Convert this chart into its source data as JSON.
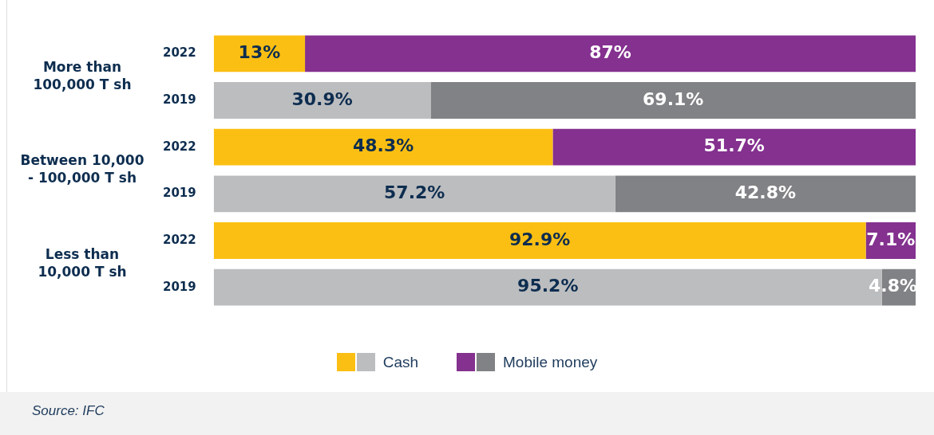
{
  "chart_data": {
    "type": "bar",
    "orientation": "horizontal",
    "stacked": true,
    "categories": [
      "2022",
      "2019",
      "2022",
      "2019",
      "2022",
      "2019"
    ],
    "series": [
      {
        "name": "Cash",
        "colors": [
          "#fbbf13",
          "#bcbdbf",
          "#fbbf13",
          "#bcbdbf",
          "#fbbf13",
          "#bcbdbf"
        ],
        "values": [
          13,
          30.9,
          48.3,
          57.2,
          92.9,
          95.2
        ],
        "value_labels": [
          "13%",
          "30.9%",
          "48.3%",
          "57.2%",
          "92.9%",
          "95.2%"
        ]
      },
      {
        "name": "Mobile money",
        "colors": [
          "#84318f",
          "#818285",
          "#84318f",
          "#818285",
          "#84318f",
          "#818285"
        ],
        "values": [
          87,
          69.1,
          51.7,
          42.8,
          7.1,
          4.8
        ],
        "value_labels": [
          "87%",
          "69.1%",
          "51.7%",
          "42.8%",
          "7.1%",
          "4.8%"
        ]
      }
    ],
    "annotations": [
      "More than 100,000 T sh",
      "Between 10,000 - 100,000 T sh",
      "Less than 10,000 T sh",
      "Source: IFC"
    ],
    "tick_labels": "y",
    "legend": "bottom"
  }
}
